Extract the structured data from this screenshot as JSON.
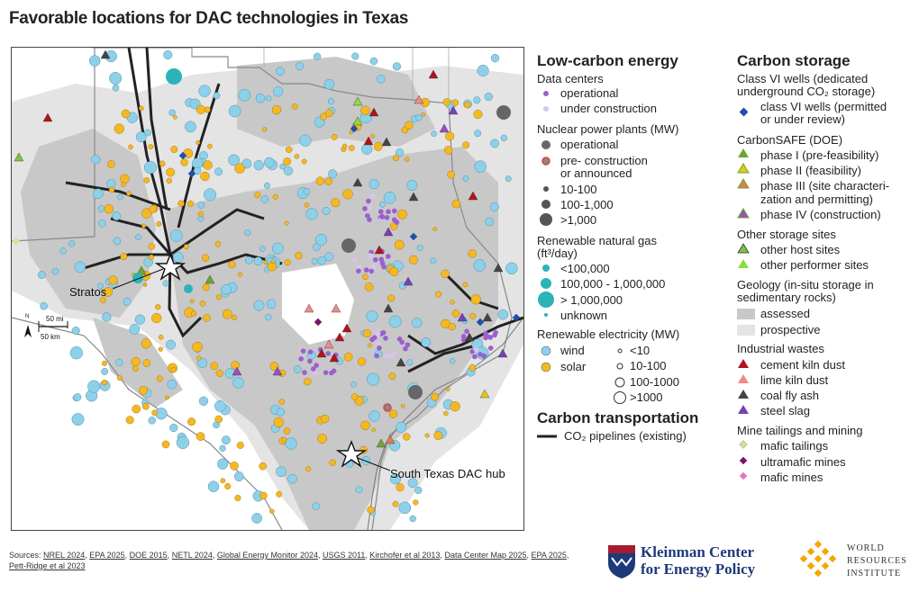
{
  "title": "Favorable locations for DAC technologies in Texas",
  "map": {
    "label_stratos": "Stratos",
    "label_south_texas": "South Texas DAC hub",
    "scale_mi": "50 mi",
    "scale_km": "50 km",
    "north": "N"
  },
  "legend": {
    "low_carbon_title": "Low-carbon energy",
    "data_centers": "Data centers",
    "dc_operational": "operational",
    "dc_under_construction": "under construction",
    "nuclear": "Nuclear power plants (MW)",
    "nuc_operational": "operational",
    "nuc_pre1": "pre- construction",
    "nuc_pre2": "or announced",
    "nuc_s1": "10-100",
    "nuc_s2": "100-1,000",
    "nuc_s3": ">1,000",
    "rng1": "Renewable natural gas",
    "rng2": "(ft³/day)",
    "rng_a": "<100,000",
    "rng_b": "100,000 - 1,000,000",
    "rng_c": "> 1,000,000",
    "rng_d": "unknown",
    "re_title": "Renewable electricity (MW)",
    "re_wind": "wind",
    "re_solar": "solar",
    "re_s1": "<10",
    "re_s2": "10-100",
    "re_s3": "100-1000",
    "re_s4": ">1000",
    "transport_title": "Carbon transportation",
    "pipelines": "CO₂ pipelines (existing)",
    "storage_title": "Carbon storage",
    "classvi_1": "Class VI wells (dedicated",
    "classvi_2": "underground CO₂ storage)",
    "classvi_w1": "class VI wells (permitted",
    "classvi_w2": "or under review)",
    "carbonsafe": "CarbonSAFE (DOE)",
    "cs1": "phase I (pre-feasibility)",
    "cs2": "phase II (feasibility)",
    "cs3a": "phase III (site characteri-",
    "cs3b": "zation and permitting)",
    "cs4": "phase IV (construction)",
    "other_storage": "Other storage sites",
    "os1": "other host sites",
    "os2": "other performer sites",
    "geo1": "Geology (in-situ storage in",
    "geo2": "sedimentary rocks)",
    "geo_assessed": "assessed",
    "geo_prospective": "prospective",
    "ind_title": "Industrial wastes",
    "ind1": "cement kiln dust",
    "ind2": "lime kiln dust",
    "ind3": "coal fly ash",
    "ind4": "steel slag",
    "mine_title": "Mine tailings and mining",
    "mine1": "mafic tailings",
    "mine2": "ultramafic mines",
    "mine3": "mafic mines"
  },
  "sources": {
    "prefix": "Sources: ",
    "items": [
      "NREL 2024",
      "EPA 2025",
      "DOE 2015",
      "NETL 2024",
      "Global Energy Monitor 2024",
      "USGS 2011",
      "Kirchofer et al 2013",
      "Data Center Map 2025",
      "EPA 2025",
      "Pett-Ridge et al 2023"
    ]
  },
  "logos": {
    "kleinman_1": "Kleinman Center",
    "kleinman_2": "for Energy Policy",
    "wri_1": "WORLD",
    "wri_2": "RESOURCES",
    "wri_3": "INSTITUTE"
  },
  "colors": {
    "wind": "#8dd0ea",
    "solar": "#f6b822",
    "assessed": "#c8c8c8",
    "prospective": "#e4e4e4",
    "datacenter_op": "#9b5fd0",
    "datacenter_uc": "#d9c4ef",
    "nuclear": "#666666",
    "rng": "#2bb3b8",
    "pipeline": "#222222",
    "classvi": "#1f4fa8",
    "cs1": "#6aa82e",
    "cs2": "#e4c41b",
    "cs3": "#e07b52",
    "cs4": "#9a4fc0",
    "os1": "#7cc34a",
    "os2": "#8bdc3e",
    "cement": "#b3121b",
    "lime": "#f08a86",
    "flyash": "#444444",
    "slag": "#7a3fb8",
    "mafic_tail": "#cfe88d",
    "ultramafic": "#7a1268",
    "mafic_mine": "#e673c8"
  }
}
